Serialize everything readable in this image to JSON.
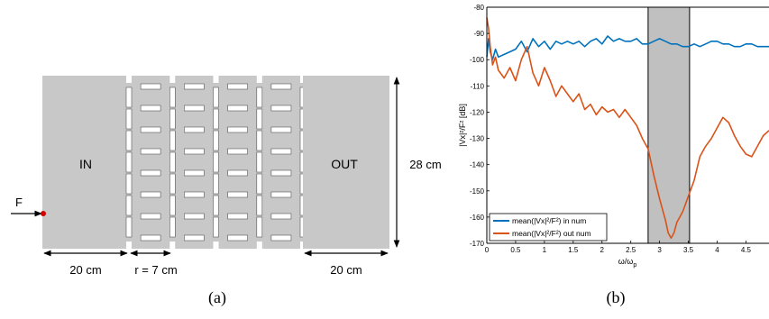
{
  "panel_a": {
    "caption": "(a)",
    "in_label": "IN",
    "out_label": "OUT",
    "force_label": "F",
    "dim_height": "28 cm",
    "dim_in_width": "20 cm",
    "dim_out_width": "20 cm",
    "dim_cell": "r = 7 cm",
    "colors": {
      "block": "#c8c8c8",
      "force_point": "#d00000"
    }
  },
  "panel_b": {
    "caption": "(b)",
    "ylabel": "|Vx|²/F² [dB]",
    "xlabel": "ω/ω",
    "xlabel_sub": "p",
    "legend": [
      "mean(|Vx|²/F²) in num",
      "mean(|Vx|²/F²) out num"
    ],
    "xticks": [
      "0",
      "0.5",
      "1",
      "1.5",
      "2",
      "2.5",
      "3",
      "3.5",
      "4",
      "4.5"
    ],
    "yticks": [
      "-80",
      "-90",
      "-100",
      "-110",
      "-120",
      "-130",
      "-140",
      "-150",
      "-160",
      "-170"
    ]
  },
  "chart_data": {
    "type": "line",
    "xlabel": "ω/ω_p",
    "ylabel": "|Vx|²/F² [dB]",
    "xlim": [
      0,
      4.9
    ],
    "ylim": [
      -170,
      -80
    ],
    "shaded_band": [
      2.8,
      3.52
    ],
    "legend_placement": "bottom-left",
    "series": [
      {
        "name": "mean(|Vx|²/F²) in num",
        "color": "#0072bd",
        "x": [
          0,
          0.03,
          0.06,
          0.1,
          0.15,
          0.2,
          0.3,
          0.4,
          0.5,
          0.6,
          0.7,
          0.8,
          0.9,
          1.0,
          1.1,
          1.2,
          1.3,
          1.4,
          1.5,
          1.6,
          1.7,
          1.8,
          1.9,
          2.0,
          2.1,
          2.2,
          2.3,
          2.4,
          2.5,
          2.6,
          2.7,
          2.8,
          2.9,
          3.0,
          3.1,
          3.2,
          3.3,
          3.4,
          3.5,
          3.6,
          3.7,
          3.8,
          3.9,
          4.0,
          4.1,
          4.2,
          4.3,
          4.4,
          4.5,
          4.6,
          4.7,
          4.8,
          4.9
        ],
        "y": [
          -99,
          -92,
          -97,
          -100,
          -96,
          -99,
          -98,
          -97,
          -96,
          -93,
          -97,
          -92,
          -95,
          -93,
          -96,
          -93,
          -94,
          -93,
          -94,
          -93,
          -95,
          -93,
          -92,
          -94,
          -91,
          -93,
          -92,
          -93,
          -93,
          -92,
          -94,
          -94,
          -93,
          -92,
          -93,
          -94,
          -94,
          -95,
          -95,
          -94,
          -95,
          -94,
          -93,
          -93,
          -94,
          -94,
          -95,
          -95,
          -94,
          -94,
          -95,
          -95,
          -95
        ]
      },
      {
        "name": "mean(|Vx|²/F²) out num",
        "color": "#d95319",
        "x": [
          0,
          0.03,
          0.06,
          0.1,
          0.15,
          0.2,
          0.3,
          0.4,
          0.5,
          0.6,
          0.7,
          0.8,
          0.9,
          1.0,
          1.1,
          1.2,
          1.3,
          1.4,
          1.5,
          1.6,
          1.7,
          1.8,
          1.9,
          2.0,
          2.1,
          2.2,
          2.3,
          2.4,
          2.5,
          2.6,
          2.7,
          2.8,
          2.9,
          3.0,
          3.1,
          3.15,
          3.2,
          3.25,
          3.3,
          3.4,
          3.5,
          3.6,
          3.7,
          3.8,
          3.9,
          4.0,
          4.1,
          4.2,
          4.3,
          4.4,
          4.5,
          4.6,
          4.7,
          4.8,
          4.9
        ],
        "y": [
          -84,
          -88,
          -95,
          -102,
          -99,
          -104,
          -107,
          -103,
          -108,
          -100,
          -95,
          -105,
          -110,
          -103,
          -108,
          -114,
          -110,
          -113,
          -116,
          -113,
          -119,
          -117,
          -121,
          -118,
          -120,
          -119,
          -122,
          -119,
          -122,
          -125,
          -130,
          -134,
          -144,
          -153,
          -161,
          -166,
          -168,
          -166,
          -162,
          -158,
          -152,
          -146,
          -137,
          -133,
          -130,
          -126,
          -122,
          -124,
          -129,
          -133,
          -136,
          -137,
          -133,
          -129,
          -127
        ]
      }
    ]
  }
}
